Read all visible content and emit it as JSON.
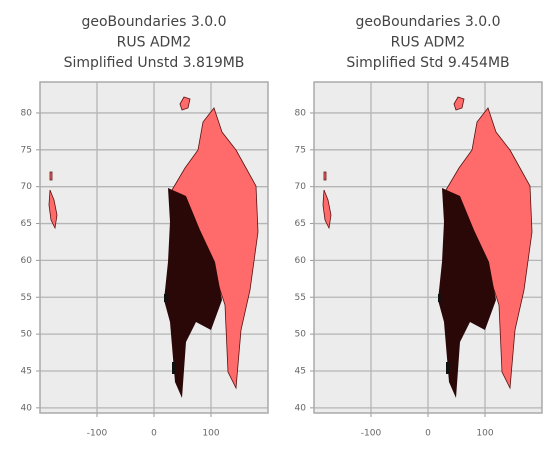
{
  "chart_data": [
    {
      "type": "map",
      "title": [
        "geoBoundaries 3.0.0",
        "RUS ADM2",
        "Simplified Unstd 3.819MB"
      ],
      "xlim": [
        -200,
        200
      ],
      "ylim": [
        39.3,
        84.2
      ],
      "xticks": [
        -100,
        0,
        100
      ],
      "yticks": [
        40,
        45,
        50,
        55,
        60,
        65,
        70,
        75,
        80
      ],
      "grid": true,
      "color": "#ff6b6b"
    },
    {
      "type": "map",
      "title": [
        "geoBoundaries 3.0.0",
        "RUS ADM2",
        "Simplified Std 9.454MB"
      ],
      "xlim": [
        -200,
        200
      ],
      "ylim": [
        39.3,
        84.2
      ],
      "xticks": [
        -100,
        0,
        100
      ],
      "yticks": [
        40,
        45,
        50,
        55,
        60,
        65,
        70,
        75,
        80
      ],
      "grid": true,
      "color": "#ff6b6b"
    }
  ]
}
